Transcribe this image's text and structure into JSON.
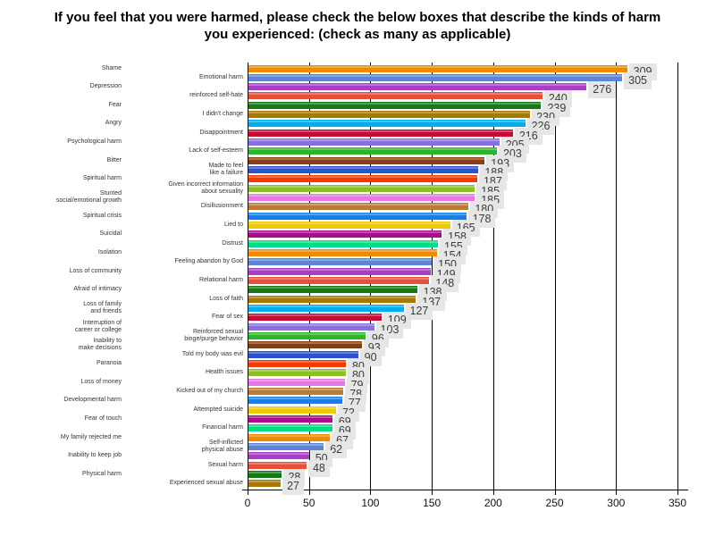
{
  "title": {
    "line1": "If you feel that you were harmed, please check the below boxes that describe the kinds of harm",
    "line2": "you experienced: (check as many as applicable)"
  },
  "chart_data": {
    "type": "bar",
    "orientation": "horizontal",
    "title": "If you feel that you were harmed, please check the below boxes that describe the kinds of harm you experienced: (check as many as applicable)",
    "xlabel": "",
    "ylabel": "",
    "xlim": [
      0,
      350
    ],
    "xticks": [
      "0",
      "50",
      "100",
      "150",
      "200",
      "250",
      "300",
      "350"
    ],
    "grid": "vertical black gridlines at every 50 units, behind bars",
    "value_label_style": {
      "box_color": "#e6e6e6",
      "text_color": "#3c3c3c"
    },
    "palette_cycle": [
      "#f08a00",
      "#5c85d6",
      "#a93fc4",
      "#e65039",
      "#157a15",
      "#a67a00",
      "#00aeef",
      "#c50a35",
      "#8a70dd",
      "#2ab52a",
      "#8a3c12",
      "#2d52cf",
      "#f23b00",
      "#8cbf2a",
      "#e678e6",
      "#bd7a35",
      "#1580ed",
      "#eccb00",
      "#a90b8c",
      "#00dd85"
    ],
    "bars": [
      {
        "label": "Shame",
        "value": 309
      },
      {
        "label": "Emotional harm",
        "value": 305
      },
      {
        "label": "Depression",
        "value": 276
      },
      {
        "label": "reinforced self-hate",
        "value": 240
      },
      {
        "label": "Fear",
        "value": 239
      },
      {
        "label": "I didn't change",
        "value": 230
      },
      {
        "label": "Angry",
        "value": 226
      },
      {
        "label": "Disappointment",
        "value": 216
      },
      {
        "label": "Psychological harm",
        "value": 205
      },
      {
        "label": "Lack of self-esteem",
        "value": 203
      },
      {
        "label": "Bitter",
        "value": 193
      },
      {
        "label": "Made to feel\nlike a failure",
        "value": 188
      },
      {
        "label": "Spiritual harm",
        "value": 187
      },
      {
        "label": "Given incorrect information\nabout sexuality",
        "value": 185
      },
      {
        "label": "Stunted\nsocial/emotional growth",
        "value": 185
      },
      {
        "label": "Disillusionment",
        "value": 180
      },
      {
        "label": "Spiritual crisis",
        "value": 178
      },
      {
        "label": "Lied to",
        "value": 165
      },
      {
        "label": "Suicidal",
        "value": 158
      },
      {
        "label": "Distrust",
        "value": 155
      },
      {
        "label": "Isolation",
        "value": 154
      },
      {
        "label": "Feeling abandon by God",
        "value": 150
      },
      {
        "label": "Loss of community",
        "value": 149
      },
      {
        "label": "Relational harm",
        "value": 148
      },
      {
        "label": "Afraid of intimacy",
        "value": 138
      },
      {
        "label": "Loss of faith",
        "value": 137
      },
      {
        "label": "Loss of family\nand friends",
        "value": 127
      },
      {
        "label": "Fear of sex",
        "value": 109
      },
      {
        "label": "Interruption of\ncareer or college",
        "value": 103
      },
      {
        "label": "Reinforced sexual\nbinge/purge behavior",
        "value": 96
      },
      {
        "label": "Inability to\nmake decisions",
        "value": 93
      },
      {
        "label": "Told my body was evil",
        "value": 90
      },
      {
        "label": "Paranoia",
        "value": 80
      },
      {
        "label": "Health issues",
        "value": 80
      },
      {
        "label": "Loss of money",
        "value": 79
      },
      {
        "label": "Kicked out of my church",
        "value": 78
      },
      {
        "label": "Developmental harm",
        "value": 77
      },
      {
        "label": "Attempted suicide",
        "value": 72
      },
      {
        "label": "Fear of touch",
        "value": 69
      },
      {
        "label": "Financial harm",
        "value": 69
      },
      {
        "label": "My family rejected me",
        "value": 67
      },
      {
        "label": "Self-inflicted\nphysical abuse",
        "value": 62
      },
      {
        "label": "Inability to keep job",
        "value": 50
      },
      {
        "label": "Sexual harm",
        "value": 48
      },
      {
        "label": "Physical harm",
        "value": 28
      },
      {
        "label": "Experienced sexual abuse",
        "value": 27
      }
    ]
  }
}
